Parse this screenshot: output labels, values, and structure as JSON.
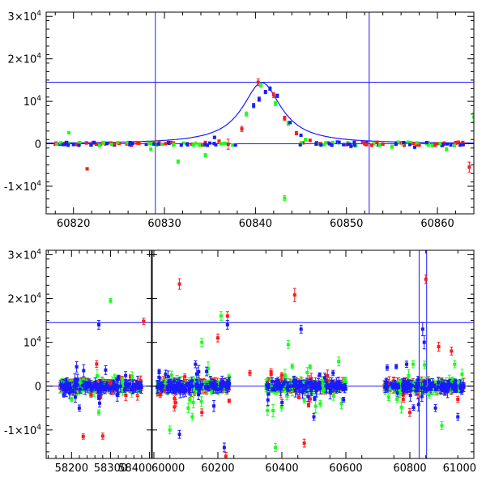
{
  "colors": {
    "axis": "#000000",
    "model": "#1a1aff",
    "red": "#ff1a1a",
    "green": "#1aff1a",
    "blue": "#1a1aff"
  },
  "chart_data": [
    {
      "type": "scatter",
      "panel": "top",
      "title": "",
      "xlabel": "",
      "ylabel": "",
      "xlim": [
        60817,
        60864
      ],
      "ylim": [
        -16500,
        31000
      ],
      "x_ticks": [
        60820,
        60830,
        60840,
        60850,
        60860
      ],
      "y_ticks": [
        {
          "value": -10000,
          "mant": "-1×10",
          "exp": "4"
        },
        {
          "value": 0,
          "mant": "0",
          "exp": ""
        },
        {
          "value": 10000,
          "mant": "10",
          "exp": "4"
        },
        {
          "value": 20000,
          "mant": "2×10",
          "exp": "4"
        },
        {
          "value": 30000,
          "mant": "3×10",
          "exp": "4"
        }
      ],
      "reference_lines": {
        "horizontal": [
          0,
          14500
        ],
        "vertical": [
          60829,
          60852.5
        ]
      },
      "model": {
        "name": "",
        "t0": 60840.7,
        "peak": 14400,
        "width": 2.6,
        "baseline": 0
      },
      "series": [
        {
          "color": "red",
          "points": [
            [
              60818,
              -100,
              300
            ],
            [
              60819,
              100,
              200
            ],
            [
              60821.5,
              -5900,
              300
            ],
            [
              60823,
              -50,
              200
            ],
            [
              60825,
              50,
              200
            ],
            [
              60827,
              150,
              200
            ],
            [
              60829.5,
              -100,
              200
            ],
            [
              60831,
              200,
              200
            ],
            [
              60833,
              -100,
              200
            ],
            [
              60834.5,
              300,
              300
            ],
            [
              60836,
              600,
              300
            ],
            [
              60837,
              -100,
              1200
            ],
            [
              60838.5,
              3500,
              600
            ],
            [
              60840.3,
              14500,
              800
            ],
            [
              60842,
              11500,
              600
            ],
            [
              60843.2,
              6000,
              500
            ],
            [
              60844.5,
              2500,
              400
            ],
            [
              60846,
              800,
              300
            ],
            [
              60848,
              200,
              300
            ],
            [
              60850,
              -200,
              300
            ],
            [
              60852,
              100,
              200
            ],
            [
              60854,
              -100,
              300
            ],
            [
              60856,
              200,
              300
            ],
            [
              60858,
              -300,
              300
            ],
            [
              60860,
              0,
              300
            ],
            [
              60862,
              200,
              400
            ],
            [
              60863.5,
              -5500,
              1200
            ]
          ]
        },
        {
          "color": "green",
          "points": [
            [
              60819.5,
              2600,
              300
            ],
            [
              60822,
              -300,
              300
            ],
            [
              60826,
              300,
              300
            ],
            [
              60828.5,
              -1300,
              300
            ],
            [
              60831.5,
              -4200,
              400
            ],
            [
              60834.5,
              -2700,
              400
            ],
            [
              60837.5,
              -300,
              300
            ],
            [
              60839,
              7000,
              500
            ],
            [
              60840.6,
              13800,
              500
            ],
            [
              60842.2,
              9500,
              500
            ],
            [
              60843.2,
              -12800,
              600
            ],
            [
              60843.6,
              4800,
              500
            ],
            [
              60845.5,
              1000,
              300
            ],
            [
              60848.5,
              300,
              300
            ],
            [
              60851,
              -500,
              300
            ],
            [
              60853,
              0,
              300
            ],
            [
              60855,
              -700,
              400
            ],
            [
              60857,
              300,
              300
            ],
            [
              60859,
              -300,
              300
            ],
            [
              60861,
              -1300,
              400
            ],
            [
              60864,
              6300,
              1000
            ]
          ]
        },
        {
          "color": "blue",
          "points": [
            [
              60818.5,
              -100,
              200
            ],
            [
              60820,
              -200,
              200
            ],
            [
              60822.5,
              0,
              200
            ],
            [
              60824.5,
              -300,
              200
            ],
            [
              60826.5,
              200,
              200
            ],
            [
              60828,
              -150,
              200
            ],
            [
              60830.5,
              100,
              200
            ],
            [
              60832.5,
              0,
              200
            ],
            [
              60834,
              -200,
              200
            ],
            [
              60835.5,
              1500,
              300
            ],
            [
              60837.8,
              -300,
              200
            ],
            [
              60839.8,
              9000,
              500
            ],
            [
              60840.4,
              10500,
              500
            ],
            [
              60841.1,
              12200,
              400
            ],
            [
              60841.6,
              13000,
              400
            ],
            [
              60842.4,
              11300,
              400
            ],
            [
              60843.8,
              5000,
              300
            ],
            [
              60845,
              2000,
              300
            ],
            [
              60847,
              0,
              300
            ],
            [
              60849,
              400,
              300
            ],
            [
              60850.5,
              -600,
              300
            ],
            [
              60852.2,
              200,
              300
            ],
            [
              60853.5,
              -300,
              300
            ],
            [
              60855.5,
              200,
              300
            ],
            [
              60857.5,
              -800,
              300
            ],
            [
              60860.5,
              -400,
              300
            ],
            [
              60862.5,
              -300,
              300
            ]
          ]
        }
      ]
    },
    {
      "type": "scatter",
      "panel": "bottom",
      "title": "",
      "xlabel": "",
      "ylabel": "",
      "broken_x_axis": true,
      "segments": [
        {
          "xlim": [
            58135,
            58405
          ],
          "x_ticks": [
            58200,
            58300,
            58400
          ]
        },
        {
          "xlim": [
            59995,
            61000
          ],
          "x_ticks": [
            60000,
            60200,
            60400,
            60600,
            60800,
            61000
          ]
        }
      ],
      "ylim": [
        -16500,
        31000
      ],
      "y_ticks": [
        {
          "value": -10000,
          "mant": "-1×10",
          "exp": "4"
        },
        {
          "value": 0,
          "mant": "0",
          "exp": ""
        },
        {
          "value": 10000,
          "mant": "10",
          "exp": "4"
        },
        {
          "value": 20000,
          "mant": "2×10",
          "exp": "4"
        },
        {
          "value": 30000,
          "mant": "3×10",
          "exp": "4"
        }
      ],
      "reference_lines": {
        "horizontal": [
          0,
          14500
        ],
        "vertical": [
          60829,
          60852.5
        ]
      },
      "observing_seasons": [
        [
          58170,
          58380
        ],
        [
          60010,
          60240
        ],
        [
          60350,
          60600
        ],
        [
          60720,
          60970
        ]
      ],
      "series": [
        {
          "color": "red",
          "points": [
            [
              58230,
              -11500,
              600
            ],
            [
              58280,
              -11400,
              700
            ],
            [
              58385,
              14800,
              700
            ],
            [
              58300,
              800,
              500
            ],
            [
              58250,
              -2000,
              500
            ],
            [
              60080,
              23300,
              1200
            ],
            [
              60150,
              -6000,
              800
            ],
            [
              60200,
              11000,
              900
            ],
            [
              60230,
              16000,
              1000
            ],
            [
              60225,
              -16000,
              900
            ],
            [
              60440,
              20800,
              1500
            ],
            [
              60470,
              -13000,
              900
            ],
            [
              60400,
              2500,
              600
            ],
            [
              60850,
              24400,
              1000
            ],
            [
              60890,
              9000,
              1000
            ],
            [
              60930,
              8000,
              900
            ],
            [
              60800,
              -6000,
              900
            ],
            [
              60950,
              -3000,
              700
            ],
            [
              60300,
              3000,
              600
            ],
            [
              60020,
              -2000,
              600
            ]
          ]
        },
        {
          "color": "green",
          "points": [
            [
              58300,
              19500,
              500
            ],
            [
              58200,
              -3000,
              500
            ],
            [
              58270,
              -6000,
              600
            ],
            [
              58330,
              1500,
              500
            ],
            [
              60150,
              10000,
              900
            ],
            [
              60210,
              16000,
              1000
            ],
            [
              60050,
              -10000,
              900
            ],
            [
              60120,
              -7000,
              800
            ],
            [
              60420,
              9500,
              900
            ],
            [
              60380,
              -14000,
              900
            ],
            [
              60520,
              -4000,
              700
            ],
            [
              60760,
              -3000,
              800
            ],
            [
              60810,
              5000,
              800
            ],
            [
              60900,
              -9000,
              900
            ],
            [
              60940,
              5000,
              800
            ],
            [
              60860,
              -2000,
              700
            ]
          ]
        },
        {
          "color": "blue",
          "points": [
            [
              58270,
              14000,
              1000
            ],
            [
              58220,
              -5000,
              700
            ],
            [
              58320,
              2000,
              500
            ],
            [
              58180,
              -2000,
              500
            ],
            [
              60230,
              14000,
              1000
            ],
            [
              60130,
              5000,
              800
            ],
            [
              60080,
              -11000,
              900
            ],
            [
              60220,
              -14000,
              1000
            ],
            [
              60460,
              13000,
              900
            ],
            [
              60500,
              -7000,
              800
            ],
            [
              60560,
              3000,
              600
            ],
            [
              60840,
              13000,
              1500
            ],
            [
              60845,
              10000,
              1500
            ],
            [
              60880,
              -5000,
              800
            ],
            [
              60950,
              -7000,
              800
            ],
            [
              60790,
              5000,
              700
            ]
          ]
        }
      ]
    }
  ]
}
